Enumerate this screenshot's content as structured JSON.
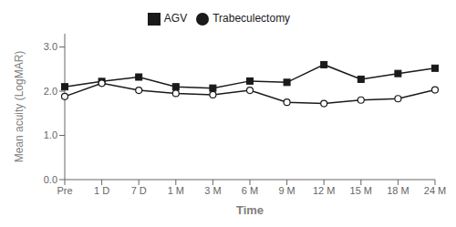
{
  "chart_data": {
    "type": "line",
    "xlabel": "Time",
    "ylabel": "Mean acuity (LogMAR)",
    "categories": [
      "Pre",
      "1 D",
      "7 D",
      "1 M",
      "3 M",
      "6 M",
      "9 M",
      "12 M",
      "15 M",
      "18 M",
      "24 M"
    ],
    "series": [
      {
        "name": "AGV",
        "color": "#1a1a1a",
        "marker": "square",
        "line_style": "solid",
        "values": [
          2.1,
          2.22,
          2.32,
          2.1,
          2.07,
          2.23,
          2.2,
          2.6,
          2.27,
          2.4,
          2.52
        ]
      },
      {
        "name": "Trabeculectomy",
        "color": "#1a1a1a",
        "marker": "open_circle",
        "line_style": "solid",
        "values": [
          1.88,
          2.18,
          2.02,
          1.95,
          1.92,
          2.02,
          1.75,
          1.72,
          1.8,
          1.83,
          2.03
        ]
      }
    ],
    "ylim": [
      0.0,
      3.3
    ],
    "yticks": [
      {
        "value": 0.0,
        "label": "0.0"
      },
      {
        "value": 1.0,
        "label": "1.0"
      },
      {
        "value": 2.0,
        "label": "2.0"
      },
      {
        "value": 3.0,
        "label": "3.0"
      }
    ],
    "grid": false,
    "legend": "top"
  }
}
